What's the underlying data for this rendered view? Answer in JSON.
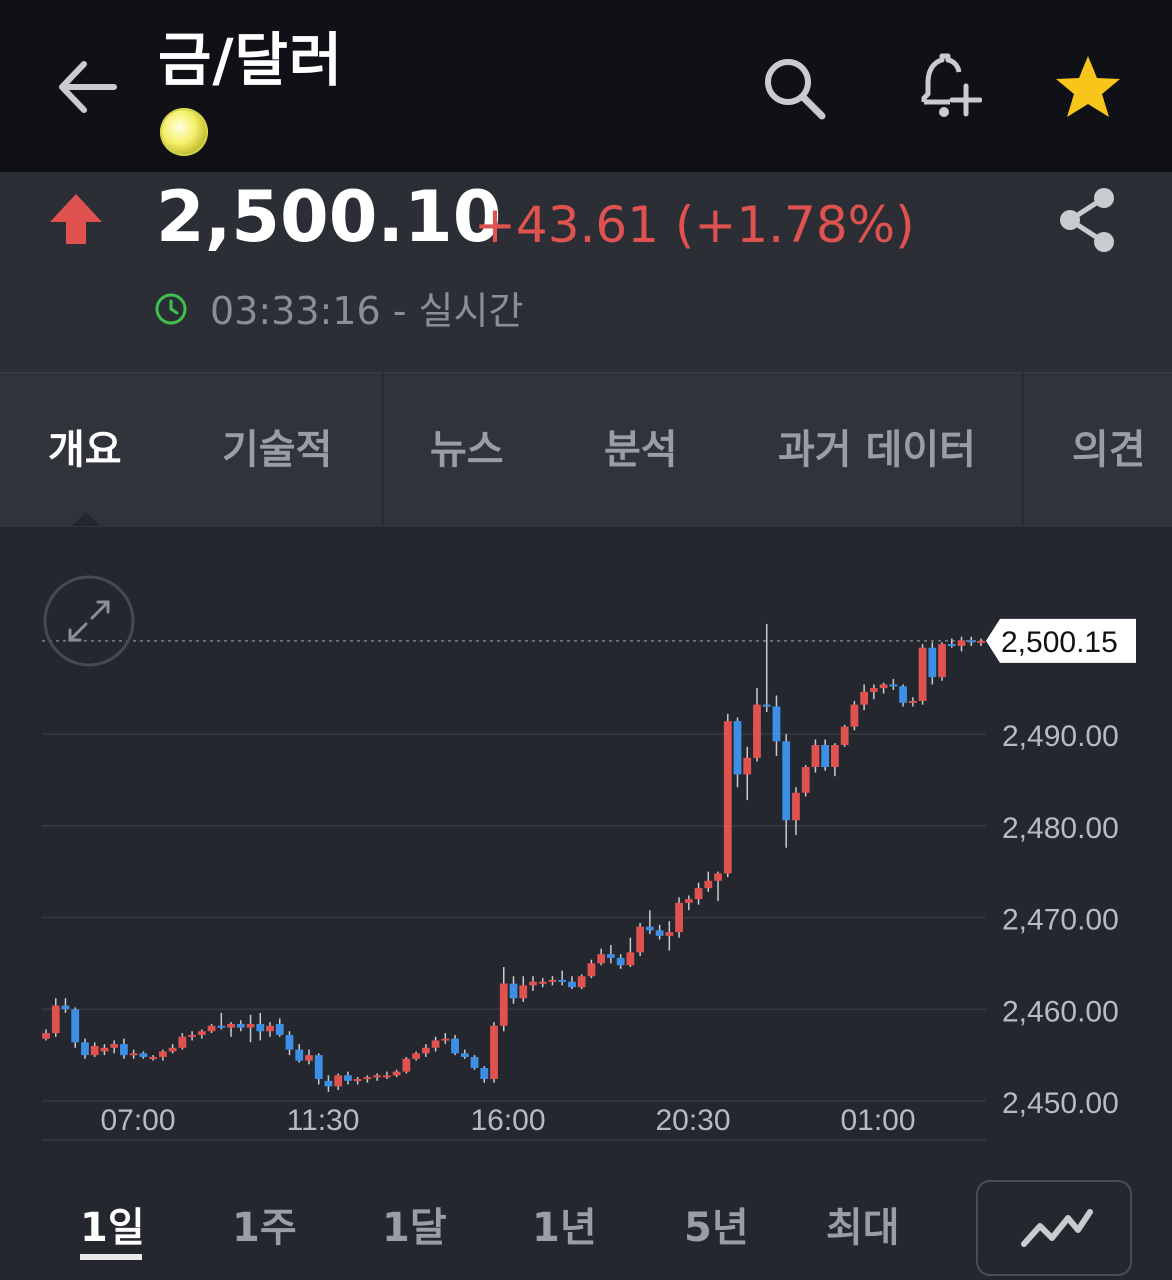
{
  "header": {
    "title": "금/달러",
    "back_icon": "arrow-left-icon",
    "search_icon": "search-icon",
    "alert_icon": "bell-plus-icon",
    "favorite_icon": "star-icon",
    "favorite_color": "#f8c61b"
  },
  "quote": {
    "price": "2,500.10",
    "change": "+43.61 (+1.78%)",
    "direction_icon": "arrow-up-icon",
    "up_color": "#e0524f",
    "time": "03:33:16 - 실시간",
    "share_icon": "share-icon"
  },
  "tabs": [
    {
      "label": "개요",
      "active": true
    },
    {
      "label": "기술적",
      "active": false
    },
    {
      "label": "뉴스",
      "active": false
    },
    {
      "label": "분석",
      "active": false
    },
    {
      "label": "과거 데이터",
      "active": false
    },
    {
      "label": "의견",
      "active": false
    }
  ],
  "ranges": [
    {
      "label": "1일",
      "active": true
    },
    {
      "label": "1주",
      "active": false
    },
    {
      "label": "1달",
      "active": false
    },
    {
      "label": "1년",
      "active": false
    },
    {
      "label": "5년",
      "active": false
    },
    {
      "label": "최대",
      "active": false
    }
  ],
  "chart_controls": {
    "expand_icon": "expand-icon",
    "chart_type_icon": "line-chart-icon"
  },
  "chart_data": {
    "type": "candlestick",
    "title": "",
    "xlabel": "",
    "ylabel": "",
    "ylim": [
      2448,
      2503
    ],
    "y_ticks": [
      "2,450.00",
      "2,460.00",
      "2,470.00",
      "2,480.00",
      "2,490.00"
    ],
    "y_tick_values": [
      2450,
      2460,
      2470,
      2480,
      2490
    ],
    "x_ticks": [
      "07:00",
      "11:30",
      "16:00",
      "20:30",
      "01:00"
    ],
    "current_price_label": "2,500.15",
    "current_price": 2500.15,
    "up_color": "#e0524f",
    "down_color": "#3d8fe6",
    "grid": true,
    "candles": [
      [
        2456.8,
        2457.8,
        2456.6,
        2457.4
      ],
      [
        2457.4,
        2461.2,
        2457.0,
        2460.4
      ],
      [
        2460.4,
        2461.2,
        2459.6,
        2460.0
      ],
      [
        2460.0,
        2460.2,
        2455.8,
        2456.4
      ],
      [
        2456.4,
        2456.8,
        2454.6,
        2455.0
      ],
      [
        2455.0,
        2456.4,
        2454.8,
        2456.0
      ],
      [
        2455.4,
        2456.2,
        2455.0,
        2455.8
      ],
      [
        2455.8,
        2456.6,
        2455.2,
        2456.2
      ],
      [
        2456.2,
        2456.8,
        2454.6,
        2455.0
      ],
      [
        2455.0,
        2455.6,
        2454.6,
        2455.2
      ],
      [
        2455.2,
        2455.4,
        2454.6,
        2454.8
      ],
      [
        2454.6,
        2455.0,
        2454.4,
        2454.8
      ],
      [
        2454.8,
        2455.6,
        2454.4,
        2455.4
      ],
      [
        2455.4,
        2456.2,
        2455.2,
        2455.8
      ],
      [
        2455.8,
        2457.4,
        2455.6,
        2457.0
      ],
      [
        2457.0,
        2457.6,
        2456.6,
        2457.2
      ],
      [
        2457.2,
        2457.8,
        2456.8,
        2457.6
      ],
      [
        2457.6,
        2458.4,
        2457.4,
        2458.2
      ],
      [
        2458.2,
        2459.6,
        2457.8,
        2458.0
      ],
      [
        2458.0,
        2458.6,
        2457.0,
        2458.4
      ],
      [
        2458.4,
        2458.8,
        2457.6,
        2458.0
      ],
      [
        2458.0,
        2459.4,
        2456.4,
        2458.4
      ],
      [
        2458.4,
        2459.6,
        2456.6,
        2457.6
      ],
      [
        2457.6,
        2458.6,
        2457.0,
        2458.2
      ],
      [
        2458.4,
        2459.0,
        2457.0,
        2457.2
      ],
      [
        2457.2,
        2457.6,
        2455.0,
        2455.6
      ],
      [
        2455.6,
        2456.2,
        2454.2,
        2454.4
      ],
      [
        2454.4,
        2455.6,
        2454.0,
        2455.0
      ],
      [
        2455.0,
        2455.2,
        2451.8,
        2452.4
      ],
      [
        2452.2,
        2452.8,
        2451.0,
        2451.6
      ],
      [
        2451.6,
        2453.0,
        2451.2,
        2452.8
      ],
      [
        2452.8,
        2453.2,
        2451.8,
        2452.2
      ],
      [
        2452.2,
        2452.6,
        2451.8,
        2452.4
      ],
      [
        2452.4,
        2452.8,
        2452.0,
        2452.6
      ],
      [
        2452.6,
        2453.0,
        2452.2,
        2452.8
      ],
      [
        2452.6,
        2453.2,
        2452.4,
        2452.8
      ],
      [
        2452.8,
        2453.4,
        2452.6,
        2453.2
      ],
      [
        2453.2,
        2454.8,
        2453.0,
        2454.6
      ],
      [
        2454.6,
        2455.4,
        2454.4,
        2455.2
      ],
      [
        2455.2,
        2456.2,
        2454.8,
        2455.8
      ],
      [
        2455.8,
        2457.0,
        2455.4,
        2456.6
      ],
      [
        2456.6,
        2457.4,
        2456.2,
        2456.8
      ],
      [
        2456.8,
        2457.2,
        2455.0,
        2455.2
      ],
      [
        2455.2,
        2455.6,
        2454.6,
        2454.8
      ],
      [
        2454.8,
        2455.0,
        2453.4,
        2453.6
      ],
      [
        2453.6,
        2453.8,
        2452.0,
        2452.4
      ],
      [
        2452.4,
        2458.6,
        2452.0,
        2458.2
      ],
      [
        2458.2,
        2464.6,
        2457.6,
        2462.8
      ],
      [
        2462.8,
        2463.6,
        2460.6,
        2461.2
      ],
      [
        2461.2,
        2463.6,
        2460.8,
        2462.6
      ],
      [
        2462.6,
        2463.6,
        2462.0,
        2463.0
      ],
      [
        2462.8,
        2463.4,
        2462.4,
        2463.0
      ],
      [
        2463.0,
        2463.6,
        2462.6,
        2463.2
      ],
      [
        2463.2,
        2464.2,
        2462.6,
        2463.0
      ],
      [
        2463.0,
        2463.6,
        2462.2,
        2462.4
      ],
      [
        2462.4,
        2463.8,
        2462.2,
        2463.6
      ],
      [
        2463.6,
        2465.4,
        2463.4,
        2465.0
      ],
      [
        2465.0,
        2466.6,
        2464.8,
        2466.0
      ],
      [
        2466.0,
        2467.0,
        2465.0,
        2465.6
      ],
      [
        2465.6,
        2466.0,
        2464.4,
        2464.8
      ],
      [
        2464.8,
        2467.8,
        2464.6,
        2466.2
      ],
      [
        2466.2,
        2469.4,
        2465.8,
        2469.0
      ],
      [
        2469.0,
        2470.8,
        2468.2,
        2468.6
      ],
      [
        2468.6,
        2469.2,
        2467.6,
        2468.0
      ],
      [
        2468.0,
        2469.6,
        2466.4,
        2468.4
      ],
      [
        2468.4,
        2472.2,
        2467.8,
        2471.6
      ],
      [
        2471.6,
        2472.4,
        2470.8,
        2472.0
      ],
      [
        2472.0,
        2473.8,
        2471.4,
        2473.2
      ],
      [
        2473.2,
        2475.0,
        2472.8,
        2474.0
      ],
      [
        2474.0,
        2475.0,
        2471.8,
        2474.8
      ],
      [
        2474.8,
        2492.2,
        2474.4,
        2491.4
      ],
      [
        2491.4,
        2491.8,
        2484.2,
        2485.6
      ],
      [
        2485.6,
        2488.6,
        2482.8,
        2487.4
      ],
      [
        2487.4,
        2495.0,
        2487.0,
        2493.2
      ],
      [
        2493.2,
        2502.0,
        2492.4,
        2493.0
      ],
      [
        2493.0,
        2494.2,
        2487.6,
        2489.2
      ],
      [
        2489.2,
        2490.0,
        2477.6,
        2480.6
      ],
      [
        2480.6,
        2484.2,
        2479.0,
        2483.6
      ],
      [
        2483.6,
        2486.6,
        2483.2,
        2486.4
      ],
      [
        2486.4,
        2489.4,
        2485.8,
        2488.8
      ],
      [
        2488.8,
        2489.4,
        2486.0,
        2486.4
      ],
      [
        2486.4,
        2489.0,
        2485.4,
        2488.8
      ],
      [
        2488.8,
        2491.0,
        2488.6,
        2490.8
      ],
      [
        2490.8,
        2493.6,
        2490.4,
        2493.2
      ],
      [
        2493.2,
        2495.4,
        2492.6,
        2494.6
      ],
      [
        2494.6,
        2495.4,
        2493.8,
        2495.0
      ],
      [
        2495.0,
        2495.6,
        2494.4,
        2495.4
      ],
      [
        2495.4,
        2496.0,
        2494.8,
        2495.2
      ],
      [
        2495.2,
        2495.4,
        2493.0,
        2493.4
      ],
      [
        2493.4,
        2494.0,
        2493.0,
        2493.6
      ],
      [
        2493.6,
        2499.8,
        2493.2,
        2499.4
      ],
      [
        2499.4,
        2500.0,
        2495.4,
        2496.2
      ],
      [
        2496.2,
        2500.0,
        2495.8,
        2499.8
      ],
      [
        2499.8,
        2500.4,
        2499.4,
        2499.6
      ],
      [
        2499.6,
        2500.6,
        2499.0,
        2500.2
      ],
      [
        2500.2,
        2500.6,
        2499.6,
        2500.0
      ],
      [
        2500.0,
        2500.4,
        2499.6,
        2500.15
      ]
    ]
  }
}
